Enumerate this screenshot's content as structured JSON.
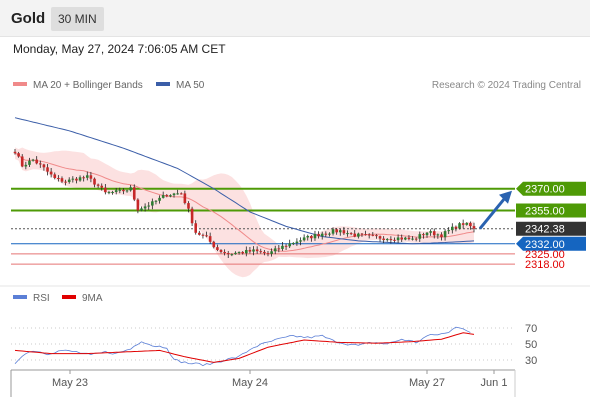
{
  "header": {
    "symbol": "Gold",
    "timeframe": "30 MIN"
  },
  "datetime": "Monday, May 27, 2024 7:06:05 AM CET",
  "legend": [
    {
      "label": "MA 20 + Bollinger Bands",
      "color": "#f08a8a"
    },
    {
      "label": "MA 50",
      "color": "#3b5ea8"
    }
  ],
  "copyright": "Research © 2024 Trading Central",
  "rsi_legend": [
    {
      "label": "RSI",
      "color": "#5b7fd6"
    },
    {
      "label": "9MA",
      "color": "#e00000"
    }
  ],
  "colors": {
    "resistance": "#4e9a06",
    "pivot": "#1565c0",
    "support": "#e57373",
    "last_price": "#333333",
    "arrow": "#2a62b0",
    "bull_candle": "#2e7d32",
    "bear_candle": "#c62828",
    "band": "#fbdcdc"
  },
  "chart_data": [
    {
      "type": "candlestick",
      "price_range": [
        2307,
        2434
      ],
      "x_ticks": [
        "May 23",
        "May 24",
        "May 27",
        "Jun 1"
      ],
      "levels": [
        {
          "label": "2370.00",
          "value": 2370.0,
          "kind": "resistance"
        },
        {
          "label": "2355.00",
          "value": 2355.0,
          "kind": "resistance"
        },
        {
          "label": "2342.38",
          "value": 2342.38,
          "kind": "last"
        },
        {
          "label": "2332.00",
          "value": 2332.0,
          "kind": "pivot"
        },
        {
          "label": "2325.00",
          "value": 2325.0,
          "kind": "support"
        },
        {
          "label": "2318.00",
          "value": 2318.0,
          "kind": "support"
        }
      ],
      "arrow": {
        "from": 2342.5,
        "to": 2370.0
      },
      "close_anchors": [
        [
          0,
          2396
        ],
        [
          2,
          2386
        ],
        [
          5,
          2390
        ],
        [
          8,
          2384
        ],
        [
          11,
          2377
        ],
        [
          14,
          2375
        ],
        [
          17,
          2377
        ],
        [
          20,
          2378
        ],
        [
          23,
          2372
        ],
        [
          25,
          2367
        ],
        [
          29,
          2368
        ],
        [
          32,
          2370
        ],
        [
          34,
          2356
        ],
        [
          38,
          2360
        ],
        [
          42,
          2366
        ],
        [
          46,
          2367
        ],
        [
          48,
          2355
        ],
        [
          50,
          2340
        ],
        [
          53,
          2336
        ],
        [
          56,
          2328
        ],
        [
          59,
          2325
        ],
        [
          62,
          2326
        ],
        [
          66,
          2327
        ],
        [
          70,
          2325
        ],
        [
          74,
          2330
        ],
        [
          78,
          2334
        ],
        [
          82,
          2337
        ],
        [
          86,
          2340
        ],
        [
          90,
          2341
        ],
        [
          94,
          2338
        ],
        [
          98,
          2337
        ],
        [
          102,
          2336
        ],
        [
          106,
          2336
        ],
        [
          110,
          2335
        ],
        [
          114,
          2340
        ],
        [
          118,
          2338
        ],
        [
          122,
          2344
        ],
        [
          124,
          2346
        ],
        [
          126,
          2344
        ],
        [
          127,
          2342.4
        ]
      ],
      "ma50_anchors": [
        [
          0,
          2419
        ],
        [
          15,
          2410
        ],
        [
          30,
          2398
        ],
        [
          45,
          2384
        ],
        [
          55,
          2370
        ],
        [
          65,
          2354
        ],
        [
          75,
          2344
        ],
        [
          85,
          2337
        ],
        [
          95,
          2334
        ],
        [
          110,
          2332
        ],
        [
          120,
          2333
        ],
        [
          127,
          2334
        ]
      ]
    },
    {
      "type": "line",
      "title": "RSI",
      "y_ticks": [
        70,
        50,
        30
      ],
      "y_range": [
        10,
        80
      ],
      "rsi_anchors": [
        [
          0,
          26
        ],
        [
          2,
          36
        ],
        [
          5,
          42
        ],
        [
          9,
          38
        ],
        [
          13,
          42
        ],
        [
          17,
          40
        ],
        [
          21,
          36
        ],
        [
          25,
          40
        ],
        [
          28,
          38
        ],
        [
          32,
          44
        ],
        [
          35,
          54
        ],
        [
          38,
          48
        ],
        [
          42,
          46
        ],
        [
          44,
          30
        ],
        [
          48,
          26
        ],
        [
          53,
          24
        ],
        [
          58,
          30
        ],
        [
          62,
          34
        ],
        [
          66,
          46
        ],
        [
          70,
          52
        ],
        [
          73,
          56
        ],
        [
          77,
          60
        ],
        [
          81,
          58
        ],
        [
          85,
          60
        ],
        [
          88,
          54
        ],
        [
          92,
          50
        ],
        [
          95,
          48
        ],
        [
          99,
          52
        ],
        [
          103,
          50
        ],
        [
          107,
          56
        ],
        [
          111,
          52
        ],
        [
          114,
          60
        ],
        [
          117,
          62
        ],
        [
          120,
          64
        ],
        [
          122,
          72
        ],
        [
          124,
          70
        ],
        [
          126,
          64
        ]
      ],
      "ma9_anchors": [
        [
          0,
          42
        ],
        [
          10,
          38
        ],
        [
          20,
          38
        ],
        [
          30,
          40
        ],
        [
          40,
          42
        ],
        [
          47,
          34
        ],
        [
          55,
          27
        ],
        [
          62,
          32
        ],
        [
          70,
          46
        ],
        [
          80,
          55
        ],
        [
          90,
          52
        ],
        [
          100,
          51
        ],
        [
          110,
          53
        ],
        [
          118,
          56
        ],
        [
          124,
          64
        ],
        [
          127,
          62
        ]
      ]
    }
  ]
}
